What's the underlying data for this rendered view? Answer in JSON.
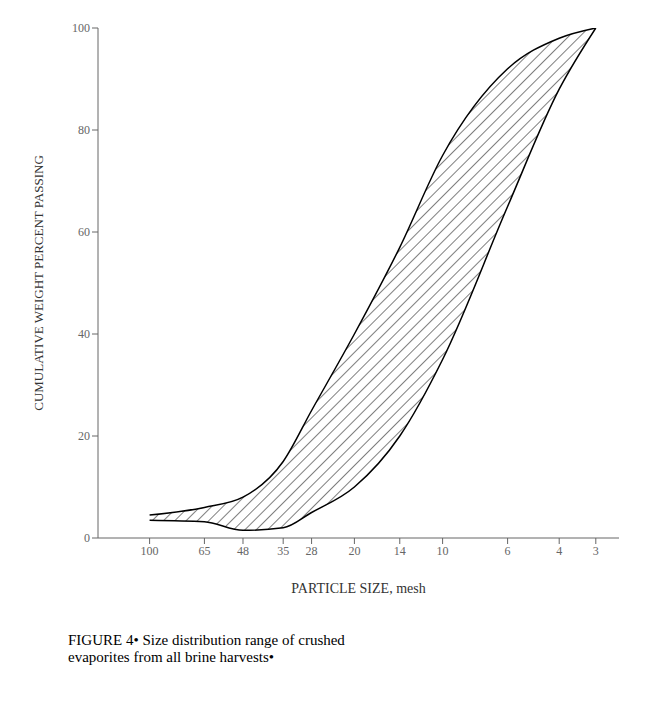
{
  "chart_data": {
    "type": "area",
    "xlabel": "PARTICLE SIZE, mesh",
    "ylabel": "CUMULATIVE WEIGHT PERCENT PASSING",
    "caption": "FIGURE 4•  Size distribution range of crushed\nevaporites from all brine harvests•",
    "x": [
      100,
      65,
      48,
      35,
      28,
      20,
      14,
      10,
      6,
      4,
      3
    ],
    "series": [
      {
        "color": "#000000",
        "values": [
          3.5,
          3.2,
          1.5,
          2.0,
          5.0,
          10.0,
          20.0,
          35.0,
          65.0,
          88.0,
          100.0
        ]
      },
      {
        "color": "#000000",
        "values": [
          4.5,
          6.0,
          8.0,
          15.0,
          25.0,
          40.0,
          57.0,
          75.0,
          92.0,
          98.0,
          100.0
        ]
      }
    ],
    "log": "x",
    "xlim": [
      150,
      2.5
    ],
    "xticks": [
      100,
      65,
      48,
      35,
      28,
      20,
      14,
      10,
      6,
      4,
      3
    ],
    "ylim": [
      0,
      100
    ],
    "yticks": [
      0,
      20,
      40,
      60,
      80,
      100
    ],
    "grid": false
  }
}
